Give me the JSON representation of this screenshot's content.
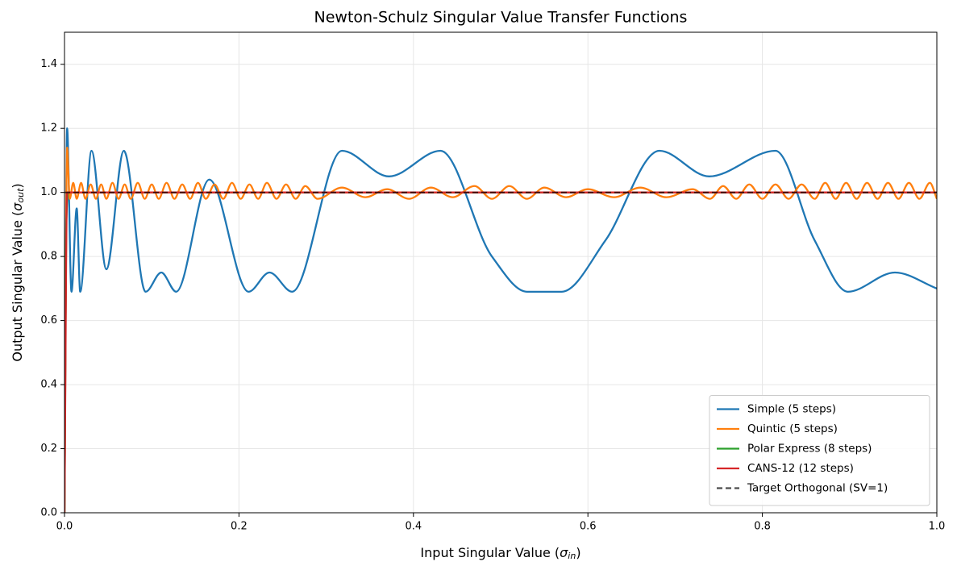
{
  "chart_data": {
    "type": "line",
    "title": "Newton-Schulz Singular Value Transfer Functions",
    "xlabel": {
      "text": "Input Singular Value (",
      "symbol": "σ",
      "subscript": "in",
      "close": ")"
    },
    "ylabel": {
      "text": "Output Singular Value (",
      "symbol": "σ",
      "subscript": "out",
      "close": ")"
    },
    "xlim": [
      0,
      1
    ],
    "ylim": [
      0,
      1.5
    ],
    "xticks": [
      {
        "value": 0,
        "label": "0.0"
      },
      0.2,
      0.4,
      0.6,
      0.8,
      {
        "value": 1,
        "label": "1.0"
      }
    ],
    "yticks": [
      {
        "value": 0,
        "label": "0.0"
      },
      0.2,
      0.4,
      0.6,
      0.8,
      {
        "value": 1,
        "label": "1.0"
      },
      1.2,
      1.4
    ],
    "grid": true,
    "legend": "lower right",
    "series": [
      {
        "name": "Simple (5 steps)",
        "color": "#1f77b4",
        "dashed": false,
        "x": [
          0,
          0.003,
          0.008,
          0.014,
          0.018,
          0.031,
          0.048,
          0.068,
          0.093,
          0.111,
          0.128,
          0.166,
          0.211,
          0.235,
          0.261,
          0.318,
          0.372,
          0.431,
          0.49,
          0.53,
          0.57,
          0.62,
          0.682,
          0.739,
          0.815,
          0.86,
          0.898,
          0.952,
          1.0
        ],
        "values": [
          0,
          1.2,
          0.69,
          0.95,
          0.69,
          1.13,
          0.76,
          1.13,
          0.69,
          0.75,
          0.69,
          1.04,
          0.69,
          0.75,
          0.69,
          1.13,
          1.05,
          1.13,
          0.8,
          0.69,
          0.69,
          0.85,
          1.13,
          1.05,
          1.13,
          0.85,
          0.69,
          0.75,
          0.7
        ]
      },
      {
        "name": "Quintic (5 steps)",
        "color": "#ff7f0e",
        "dashed": false,
        "x": [
          0,
          0.003,
          0.006,
          0.01,
          0.014,
          0.019,
          0.024,
          0.03,
          0.036,
          0.042,
          0.048,
          0.055,
          0.062,
          0.069,
          0.076,
          0.084,
          0.092,
          0.1,
          0.108,
          0.117,
          0.126,
          0.135,
          0.144,
          0.153,
          0.162,
          0.172,
          0.182,
          0.192,
          0.202,
          0.212,
          0.222,
          0.232,
          0.243,
          0.254,
          0.265,
          0.276,
          0.29,
          0.318,
          0.345,
          0.37,
          0.395,
          0.42,
          0.445,
          0.47,
          0.49,
          0.51,
          0.53,
          0.55,
          0.575,
          0.6,
          0.63,
          0.66,
          0.69,
          0.72,
          0.74,
          0.755,
          0.77,
          0.785,
          0.8,
          0.815,
          0.83,
          0.845,
          0.86,
          0.872,
          0.884,
          0.896,
          0.908,
          0.92,
          0.932,
          0.944,
          0.956,
          0.968,
          0.98,
          0.992,
          1.0
        ],
        "values": [
          0,
          1.14,
          0.98,
          1.03,
          0.98,
          1.03,
          0.98,
          1.025,
          0.98,
          1.025,
          0.98,
          1.03,
          0.98,
          1.025,
          0.98,
          1.03,
          0.98,
          1.025,
          0.98,
          1.03,
          0.98,
          1.025,
          0.98,
          1.03,
          0.98,
          1.025,
          0.98,
          1.03,
          0.98,
          1.025,
          0.98,
          1.03,
          0.98,
          1.025,
          0.98,
          1.02,
          0.98,
          1.015,
          0.985,
          1.01,
          0.98,
          1.015,
          0.985,
          1.02,
          0.98,
          1.02,
          0.98,
          1.015,
          0.985,
          1.01,
          0.985,
          1.015,
          0.985,
          1.01,
          0.98,
          1.02,
          0.98,
          1.025,
          0.98,
          1.025,
          0.98,
          1.025,
          0.98,
          1.03,
          0.98,
          1.03,
          0.98,
          1.03,
          0.98,
          1.03,
          0.98,
          1.03,
          0.98,
          1.03,
          0.98
        ]
      },
      {
        "name": "Polar Express (8 steps)",
        "color": "#2ca02c",
        "dashed": false,
        "x": [
          0,
          0.002,
          0.004,
          1.0
        ],
        "values": [
          0,
          0.9,
          1.0,
          1.0
        ]
      },
      {
        "name": "CANS-12 (12 steps)",
        "color": "#d62728",
        "dashed": false,
        "x": [
          0,
          0.003,
          1.0
        ],
        "values": [
          0,
          1.0,
          1.0
        ]
      },
      {
        "name": "Target Orthogonal (SV=1)",
        "color": "#000000",
        "dashed": true,
        "x": [
          0,
          1.0
        ],
        "values": [
          1.0,
          1.0
        ]
      }
    ]
  }
}
